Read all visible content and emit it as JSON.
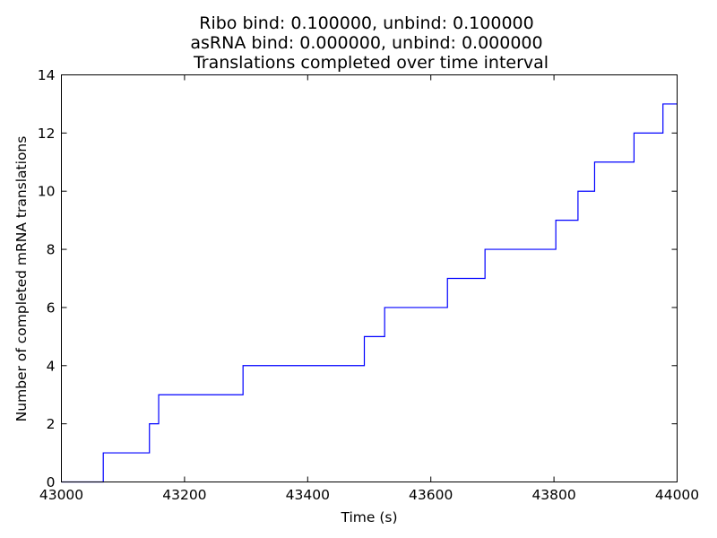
{
  "chart_data": {
    "type": "line",
    "drawstyle": "step-post",
    "title_lines": [
      "Ribo bind: 0.100000, unbind: 0.100000",
      "asRNA bind: 0.000000, unbind: 0.000000",
      "Translations completed over time interval"
    ],
    "xlabel": "Time (s)",
    "ylabel": "Number of completed mRNA translations",
    "xlim": [
      43000,
      44000
    ],
    "ylim": [
      0,
      14
    ],
    "xticks": [
      "43000",
      "43200",
      "43400",
      "43600",
      "43800",
      "44000"
    ],
    "yticks": [
      "0",
      "2",
      "4",
      "6",
      "8",
      "10",
      "12",
      "14"
    ],
    "grid": false,
    "series": [
      {
        "color": "#0000ff",
        "x": [
          43000,
          43068,
          43143,
          43158,
          43295,
          43492,
          43525,
          43627,
          43688,
          43803,
          43839,
          43866,
          43930,
          43977,
          44000
        ],
        "y": [
          0,
          1,
          2,
          3,
          4,
          5,
          6,
          7,
          8,
          9,
          10,
          11,
          12,
          13,
          13
        ]
      }
    ]
  }
}
